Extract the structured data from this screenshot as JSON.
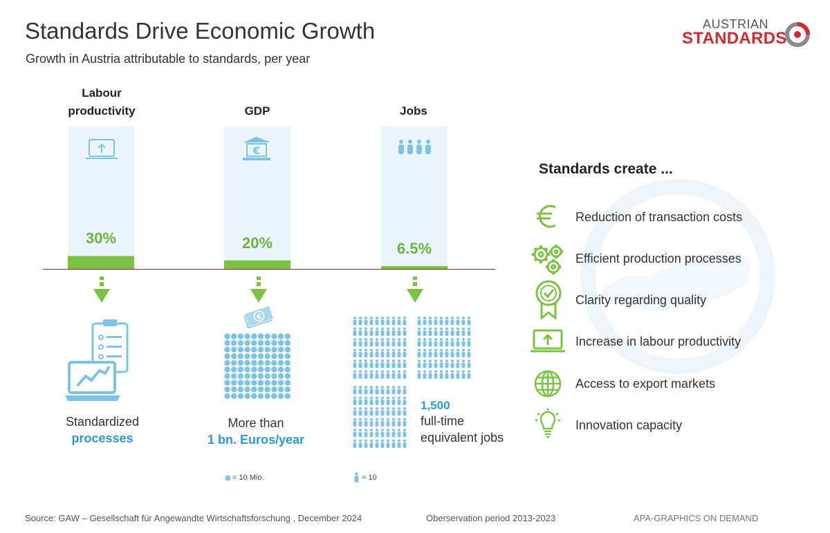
{
  "header": {
    "title": "Standards Drive Economic Growth",
    "subtitle": "Growth in Austria attributable to standards, per year",
    "logo_top": "AUSTRIAN",
    "logo_bottom": "STANDARDS"
  },
  "chart_data": {
    "type": "bar",
    "categories": [
      "Labour productivity",
      "GDP",
      "Jobs"
    ],
    "category_labels": [
      [
        "Labour",
        "productivity"
      ],
      [
        "GDP"
      ],
      [
        "Jobs"
      ]
    ],
    "values": [
      30,
      20,
      6.5
    ],
    "value_labels": [
      "30%",
      "20%",
      "6.5%"
    ],
    "ylim": [
      0,
      100
    ],
    "grid": false,
    "colors": {
      "bar": "#7bc142",
      "bar_background": "#eaf5fb",
      "value_text": "#6cb33f",
      "baseline": "#7a2b2b"
    }
  },
  "captions": [
    {
      "main": "Standardized",
      "accent": "processes"
    },
    {
      "main": "More than",
      "accent": "1 bn. Euros/year"
    },
    {
      "accent": "1,500",
      "line2": "full-time",
      "line3": "equivalent jobs"
    }
  ],
  "legends": {
    "coin": "= 10 Mio.",
    "person": "= 10"
  },
  "benefits": {
    "title": "Standards create ...",
    "items": [
      {
        "label": "Reduction of transaction costs",
        "icon": "euro-icon"
      },
      {
        "label": "Efficient production processes",
        "icon": "gears-icon"
      },
      {
        "label": "Clarity regarding quality",
        "icon": "quality-badge-icon"
      },
      {
        "label": "Increase in labour productivity",
        "icon": "laptop-arrow-icon"
      },
      {
        "label": "Access to export markets",
        "icon": "globe-icon"
      },
      {
        "label": "Innovation capacity",
        "icon": "lightbulb-icon"
      }
    ]
  },
  "footer": {
    "source": "Source: GAW – Gesellschaft für Angewandte Wirtschaftsforschung , December 2024",
    "period": "Oberservation period 2013-2023",
    "credit": "APA-GRAPHICS ON DEMAND"
  },
  "colors": {
    "green": "#7bc142",
    "blue": "#2e98cf",
    "light_blue": "#7cc3e6",
    "red": "#d1292f"
  }
}
